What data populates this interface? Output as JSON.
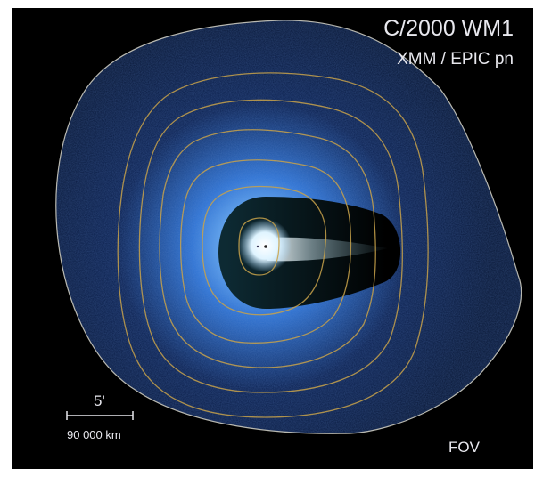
{
  "title": "C/2000 WM1",
  "subtitle": "XMM / EPIC pn",
  "scale_bar": {
    "angle_label": "5'",
    "distance_label": "90 000 km"
  },
  "fov_label": "FOV",
  "colors": {
    "background": "#000000",
    "glow_core": "#ffffff",
    "glow_inner": "#7fc4ff",
    "glow_mid": "#2f74d4",
    "glow_outer": "#0c2150",
    "contour": "#c8a24a",
    "fov_outline": "#b8b8b0",
    "shadow": "#000000"
  }
}
